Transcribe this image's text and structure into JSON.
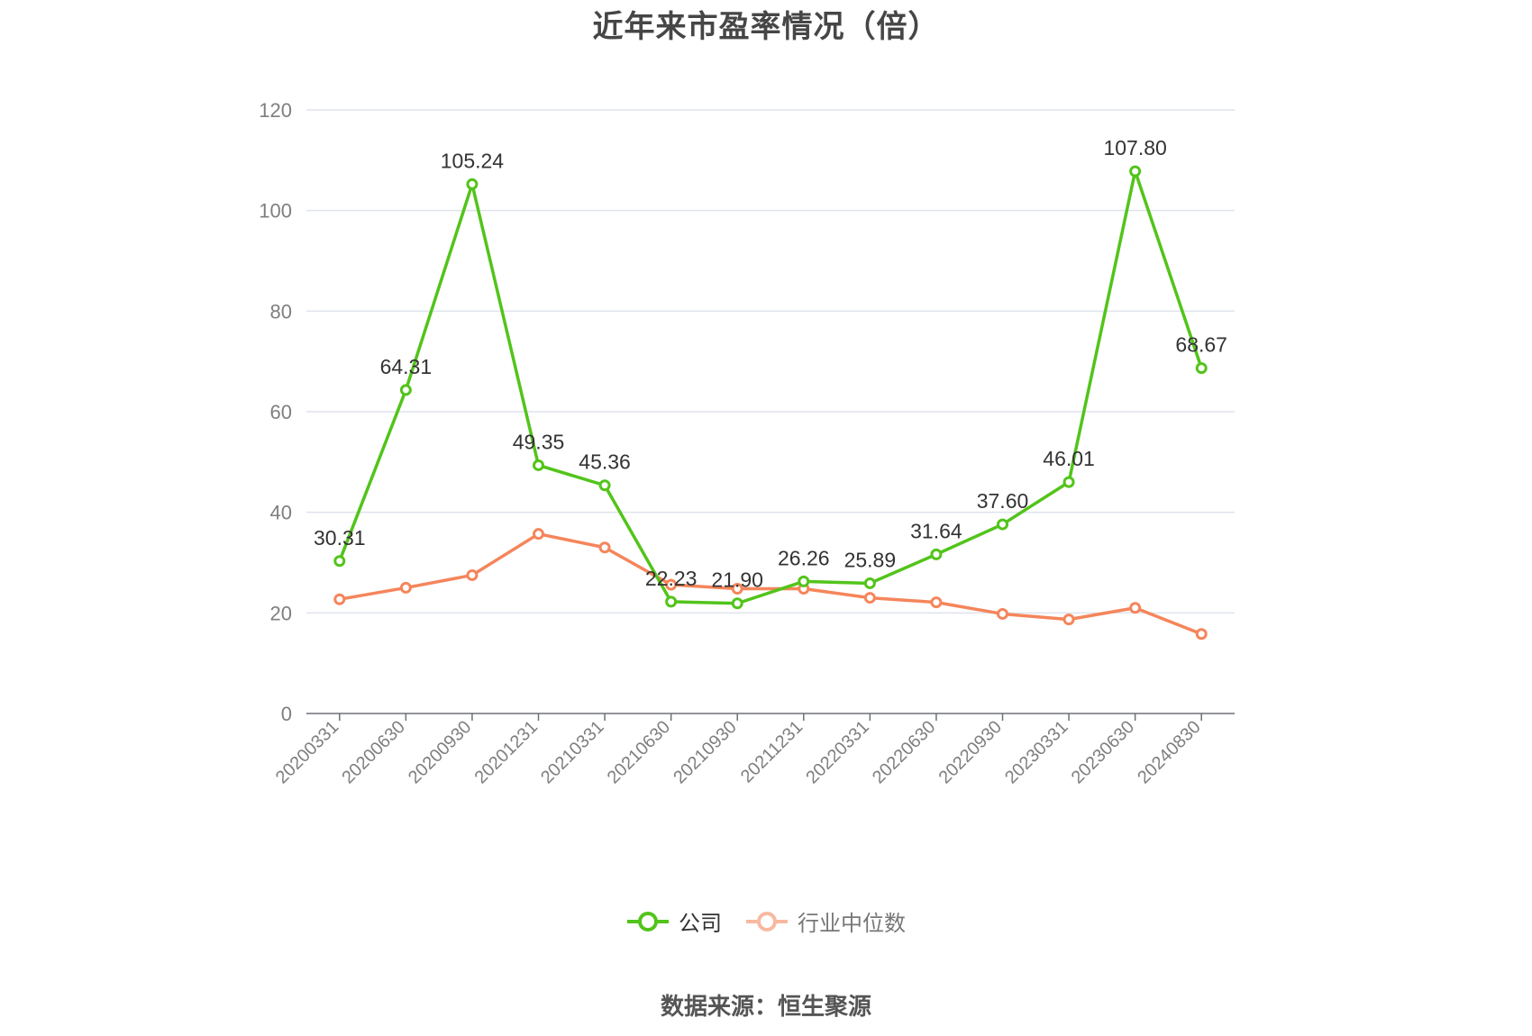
{
  "title": "近年来市盈率情况（倍）",
  "source": "数据来源：恒生聚源",
  "colors": {
    "company": "#52c41a",
    "industry": "#f5855b",
    "industry_legend": "#f8b9a0",
    "grid": "#dfe3ee",
    "axis": "#6e7079",
    "tick_text": "#7f7f7f",
    "label_text": "#333333"
  },
  "legend": {
    "company": "公司",
    "industry": "行业中位数"
  },
  "chart_data": {
    "type": "line",
    "title": "近年来市盈率情况（倍）",
    "xlabel": "",
    "ylabel": "",
    "ylim": [
      0,
      120
    ],
    "yticks": [
      0,
      20,
      40,
      60,
      80,
      100,
      120
    ],
    "grid": true,
    "legend_position": "bottom",
    "categories": [
      "20200331",
      "20200630",
      "20200930",
      "20201231",
      "20210331",
      "20210630",
      "20210930",
      "20211231",
      "20220331",
      "20220630",
      "20220930",
      "20230331",
      "20230630",
      "20240830"
    ],
    "series": [
      {
        "name": "公司",
        "values": [
          30.31,
          64.31,
          105.24,
          49.35,
          45.36,
          22.23,
          21.9,
          26.26,
          25.89,
          31.64,
          37.6,
          46.01,
          107.8,
          68.67
        ],
        "labels": [
          "30.31",
          "64.31",
          "105.24",
          "49.35",
          "45.36",
          "22.23",
          "21.90",
          "26.26",
          "25.89",
          "31.64",
          "37.60",
          "46.01",
          "107.80",
          "68.67"
        ]
      },
      {
        "name": "行业中位数",
        "values": [
          22.7,
          25.0,
          27.5,
          35.7,
          33.0,
          25.6,
          24.8,
          24.8,
          23.0,
          22.1,
          19.8,
          18.7,
          21.0,
          15.8
        ]
      }
    ]
  }
}
